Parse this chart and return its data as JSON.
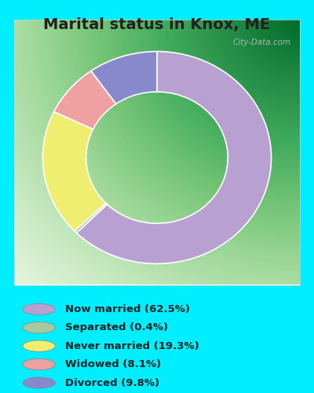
{
  "title": "Marital status in Knox, ME",
  "title_fontsize": 14,
  "categories": [
    "Now married",
    "Separated",
    "Never married",
    "Widowed",
    "Divorced"
  ],
  "values": [
    62.5,
    0.4,
    19.3,
    8.1,
    9.8
  ],
  "colors": [
    "#b8a0d0",
    "#a8c8a0",
    "#f0ee70",
    "#f0a0a0",
    "#8888cc"
  ],
  "legend_labels": [
    "Now married (62.5%)",
    "Separated (0.4%)",
    "Never married (19.3%)",
    "Widowed (8.1%)",
    "Divorced (9.8%)"
  ],
  "bg_outer": "#00eeff",
  "watermark": "City-Data.com",
  "start_angle": 90,
  "chart_bg_color": "#d8eedd"
}
